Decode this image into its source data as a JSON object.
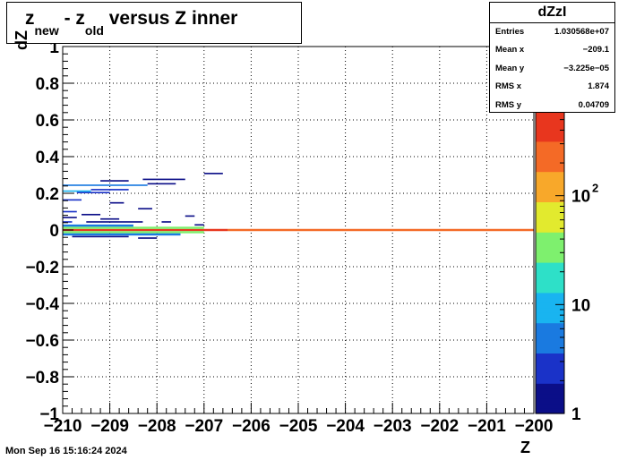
{
  "title": {
    "main": "z",
    "sub1": "new",
    "mid": " - z",
    "sub2": "old",
    "rest": " versus Z inner"
  },
  "stats": {
    "name": "dZzI",
    "rows": [
      {
        "label": "Entries",
        "value": "1.030568e+07"
      },
      {
        "label": "Mean x",
        "value": "−209.1"
      },
      {
        "label": "Mean y",
        "value": "−3.225e−05"
      },
      {
        "label": "RMS x",
        "value": "1.874"
      },
      {
        "label": "RMS y",
        "value": "0.04709"
      }
    ]
  },
  "footer": "Mon Sep 16 15:16:24 2024",
  "chart_data": {
    "type": "heatmap",
    "xlabel": "Z",
    "ylabel": "dZ",
    "xlim": [
      -210,
      -200
    ],
    "ylim": [
      -1,
      1
    ],
    "x_ticks": [
      "−210",
      "−209",
      "−208",
      "−207",
      "−206",
      "−205",
      "−204",
      "−203",
      "−202",
      "−201",
      "−200"
    ],
    "y_ticks": [
      "−1",
      "−0.8",
      "−0.6",
      "−0.4",
      "−0.2",
      "0",
      "0.2",
      "0.4",
      "0.6",
      "0.8",
      "1"
    ],
    "x_tick_values": [
      -210,
      -209,
      -208,
      -207,
      -206,
      -205,
      -204,
      -203,
      -202,
      -201,
      -200
    ],
    "y_tick_values": [
      -1,
      -0.8,
      -0.6,
      -0.4,
      -0.2,
      0,
      0.2,
      0.4,
      0.6,
      0.8,
      1
    ],
    "grid": true,
    "z_scale": "log",
    "z_range": [
      1,
      600
    ],
    "z_ticks": [
      {
        "value": 1,
        "label": "1"
      },
      {
        "value": 10,
        "label": "10"
      },
      {
        "value": 100,
        "label": "10",
        "sup": "2"
      }
    ],
    "palette": [
      "#0b0e88",
      "#1a32c8",
      "#1a7ae0",
      "#19b4f0",
      "#2ee0c8",
      "#7ef06e",
      "#e2ea2e",
      "#f8a82a",
      "#f46a26",
      "#e8361e"
    ],
    "cells": [
      {
        "x0": -210,
        "x1": -206.5,
        "y0": -0.006,
        "y1": 0.006,
        "z": 600
      },
      {
        "x0": -206.5,
        "x1": -200,
        "y0": -0.006,
        "y1": 0.006,
        "z": 250
      },
      {
        "x0": -210,
        "x1": -207,
        "y0": 0.006,
        "y1": 0.018,
        "z": 30
      },
      {
        "x0": -210,
        "x1": -207,
        "y0": -0.018,
        "y1": -0.006,
        "z": 30
      },
      {
        "x0": -210,
        "x1": -208.5,
        "y0": 0.018,
        "y1": 0.03,
        "z": 6
      },
      {
        "x0": -210,
        "x1": -207.5,
        "y0": -0.03,
        "y1": -0.018,
        "z": 4
      },
      {
        "x0": -209.7,
        "x1": -209.0,
        "y0": 0.2,
        "y1": 0.208,
        "z": 3
      },
      {
        "x0": -210,
        "x1": -209.4,
        "y0": 0.208,
        "y1": 0.216,
        "z": 12
      },
      {
        "x0": -209.4,
        "x1": -208.6,
        "y0": 0.216,
        "y1": 0.224,
        "z": 2
      },
      {
        "x0": -210,
        "x1": -208.2,
        "y0": 0.24,
        "y1": 0.248,
        "z": 4
      },
      {
        "x0": -208.2,
        "x1": -207.6,
        "y0": 0.248,
        "y1": 0.256,
        "z": 1
      },
      {
        "x0": -209.2,
        "x1": -208.6,
        "y0": 0.264,
        "y1": 0.272,
        "z": 1
      },
      {
        "x0": -208.3,
        "x1": -207.4,
        "y0": 0.272,
        "y1": 0.28,
        "z": 1
      },
      {
        "x0": -207.0,
        "x1": -206.6,
        "y0": 0.304,
        "y1": 0.312,
        "z": 1
      },
      {
        "x0": -210,
        "x1": -209.6,
        "y0": 0.16,
        "y1": 0.168,
        "z": 2
      },
      {
        "x0": -209.0,
        "x1": -208.7,
        "y0": 0.144,
        "y1": 0.152,
        "z": 1
      },
      {
        "x0": -208.4,
        "x1": -208.1,
        "y0": 0.112,
        "y1": 0.12,
        "z": 1
      },
      {
        "x0": -210,
        "x1": -209.7,
        "y0": 0.096,
        "y1": 0.104,
        "z": 2
      },
      {
        "x0": -209.6,
        "x1": -209.2,
        "y0": 0.08,
        "y1": 0.088,
        "z": 1
      },
      {
        "x0": -210,
        "x1": -209.7,
        "y0": 0.064,
        "y1": 0.072,
        "z": 1
      },
      {
        "x0": -209.2,
        "x1": -208.8,
        "y0": 0.056,
        "y1": 0.064,
        "z": 1
      },
      {
        "x0": -207.4,
        "x1": -207.2,
        "y0": 0.072,
        "y1": 0.08,
        "z": 1
      },
      {
        "x0": -210,
        "x1": -209.8,
        "y0": 0.04,
        "y1": 0.048,
        "z": 3
      },
      {
        "x0": -209.5,
        "x1": -208.3,
        "y0": 0.04,
        "y1": 0.048,
        "z": 1
      },
      {
        "x0": -207.9,
        "x1": -207.7,
        "y0": 0.04,
        "y1": 0.048,
        "z": 1
      },
      {
        "x0": -207.2,
        "x1": -207.0,
        "y0": 0.024,
        "y1": 0.032,
        "z": 1
      },
      {
        "x0": -209.8,
        "x1": -208.6,
        "y0": -0.04,
        "y1": -0.032,
        "z": 1
      },
      {
        "x0": -208.4,
        "x1": -208.0,
        "y0": -0.048,
        "y1": -0.04,
        "z": 1
      }
    ]
  }
}
